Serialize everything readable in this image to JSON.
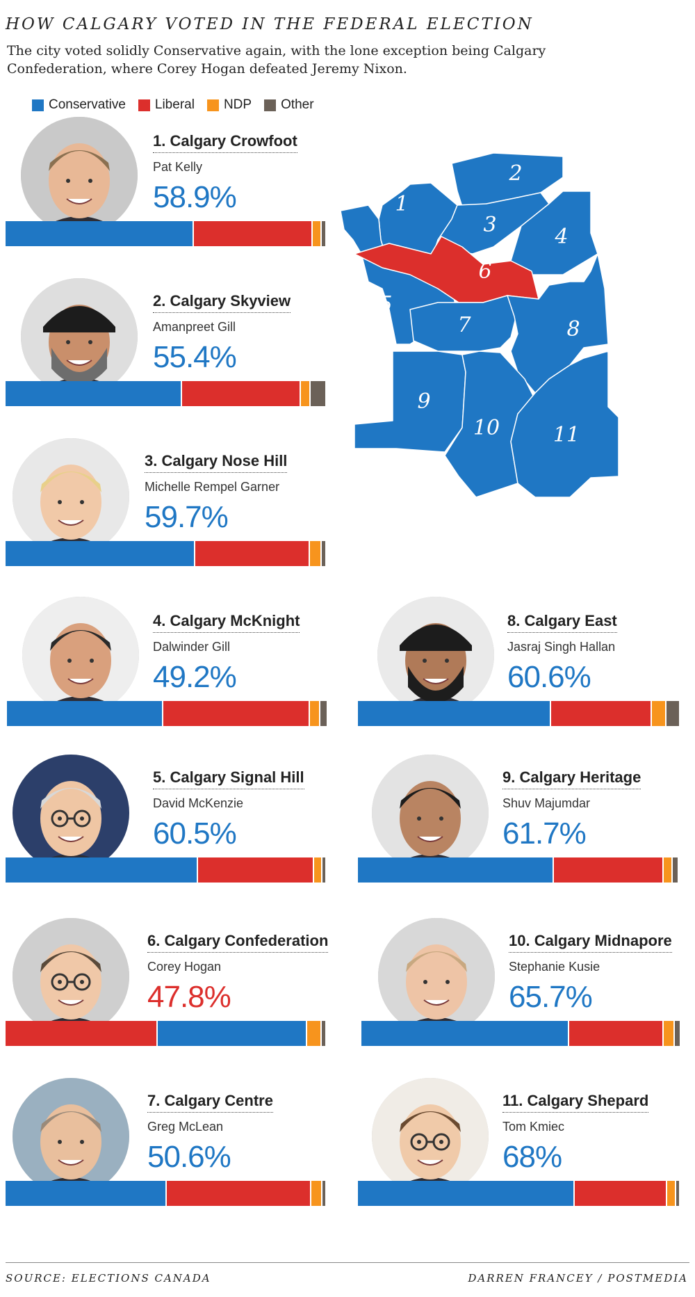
{
  "title": "HOW CALGARY VOTED IN THE FEDERAL ELECTION",
  "subtitle": "The city voted solidly Conservative again, with the lone exception being Calgary Confederation, where Corey Hogan defeated Jeremy Nixon.",
  "colors": {
    "conservative": "#1f77c4",
    "liberal": "#dc2f2c",
    "ndp": "#f7941d",
    "other": "#6b6158"
  },
  "legend": [
    {
      "label": "Conservative",
      "color": "#1f77c4"
    },
    {
      "label": "Liberal",
      "color": "#dc2f2c"
    },
    {
      "label": "NDP",
      "color": "#f7941d"
    },
    {
      "label": "Other",
      "color": "#6b6158"
    }
  ],
  "chart_data": {
    "type": "bar",
    "series_order": [
      "Conservative",
      "Liberal",
      "NDP",
      "Other"
    ],
    "ridings": [
      {
        "number": 1,
        "name": "1. Calgary Crowfoot",
        "candidate": "Pat Kelly",
        "pct_label": "58.9%",
        "winner": "Conservative",
        "shares": [
          58.9,
          37.0,
          2.5,
          1.0
        ]
      },
      {
        "number": 2,
        "name": "2. Calgary Skyview",
        "candidate": "Amanpreet Gill",
        "pct_label": "55.4%",
        "winner": "Conservative",
        "shares": [
          55.4,
          37.3,
          2.7,
          4.6
        ]
      },
      {
        "number": 3,
        "name": "3. Calgary Nose Hill",
        "candidate": "Michelle Rempel Garner",
        "pct_label": "59.7%",
        "winner": "Conservative",
        "shares": [
          59.7,
          36.0,
          3.2,
          1.1
        ]
      },
      {
        "number": 4,
        "name": "4. Calgary McKnight",
        "candidate": "Dalwinder Gill",
        "pct_label": "49.2%",
        "winner": "Conservative",
        "shares": [
          49.2,
          45.9,
          2.9,
          2.0
        ]
      },
      {
        "number": 5,
        "name": "5. Calgary Signal Hill",
        "candidate": "David McKenzie",
        "pct_label": "60.5%",
        "winner": "Conservative",
        "shares": [
          60.5,
          36.4,
          2.3,
          0.8
        ]
      },
      {
        "number": 6,
        "name": "6. Calgary Confederation",
        "candidate": "Corey Hogan",
        "pct_label": "47.8%",
        "winner": "Liberal",
        "shares": [
          47.0,
          47.8,
          4.0,
          1.2
        ]
      },
      {
        "number": 7,
        "name": "7. Calgary Centre",
        "candidate": "Greg McLean",
        "pct_label": "50.6%",
        "winner": "Conservative",
        "shares": [
          50.6,
          45.4,
          3.1,
          0.9
        ]
      },
      {
        "number": 8,
        "name": "8. Calgary East",
        "candidate": "Jasraj Singh Hallan",
        "pct_label": "60.6%",
        "winner": "Conservative",
        "shares": [
          60.6,
          31.3,
          4.1,
          4.0
        ]
      },
      {
        "number": 9,
        "name": "9. Calgary Heritage",
        "candidate": "Shuv Majumdar",
        "pct_label": "61.7%",
        "winner": "Conservative",
        "shares": [
          61.7,
          34.3,
          2.5,
          1.5
        ]
      },
      {
        "number": 10,
        "name": "10. Calgary Midnapore",
        "candidate": "Stephanie Kusie",
        "pct_label": "65.7%",
        "winner": "Conservative",
        "shares": [
          65.7,
          29.7,
          3.0,
          1.6
        ]
      },
      {
        "number": 11,
        "name": "11. Calgary Shepard",
        "candidate": "Tom Kmiec",
        "pct_label": "68%",
        "winner": "Conservative",
        "shares": [
          68.0,
          28.6,
          2.5,
          0.9
        ]
      }
    ]
  },
  "map": {
    "labels": [
      "1",
      "2",
      "3",
      "4",
      "5",
      "6",
      "7",
      "8",
      "9",
      "10",
      "11"
    ]
  },
  "footer": {
    "source": "SOURCE: ELECTIONS CANADA",
    "credit": "DARREN FRANCEY / POSTMEDIA"
  }
}
